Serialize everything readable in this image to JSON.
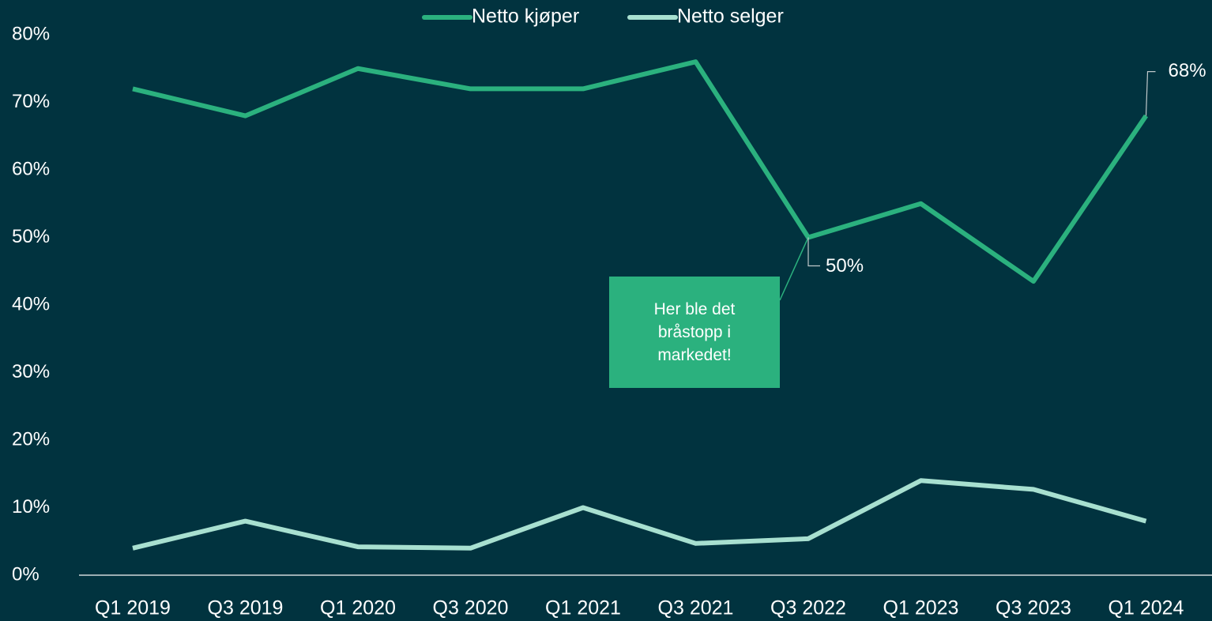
{
  "chart_data": {
    "type": "line",
    "categories": [
      "Q1 2019",
      "Q3 2019",
      "Q1 2020",
      "Q3 2020",
      "Q1 2021",
      "Q3 2021",
      "Q3 2022",
      "Q1 2023",
      "Q3 2023",
      "Q1 2024"
    ],
    "series": [
      {
        "name": "Netto kjøper",
        "color": "#2bb17e",
        "values": [
          72,
          68,
          75,
          72,
          72,
          76,
          50,
          55,
          43.5,
          68
        ],
        "value_labels": [
          null,
          null,
          null,
          null,
          null,
          null,
          "50%",
          null,
          null,
          "68%"
        ]
      },
      {
        "name": "Netto selger",
        "color": "#a8e0d0",
        "values": [
          4,
          8,
          4.2,
          4,
          10,
          4.7,
          5.4,
          14,
          12.7,
          8
        ]
      }
    ],
    "ylim": [
      0,
      80
    ],
    "yticks": [
      {
        "value": 0,
        "label": "0%"
      },
      {
        "value": 10,
        "label": "10%"
      },
      {
        "value": 20,
        "label": "20%"
      },
      {
        "value": 30,
        "label": "30%"
      },
      {
        "value": 40,
        "label": "40%"
      },
      {
        "value": 50,
        "label": "50%"
      },
      {
        "value": 60,
        "label": "60%"
      },
      {
        "value": 70,
        "label": "70%"
      },
      {
        "value": 80,
        "label": "80%"
      }
    ],
    "grid": false,
    "legend": "top",
    "annotation": "Her ble det bråstopp i markedet!"
  }
}
